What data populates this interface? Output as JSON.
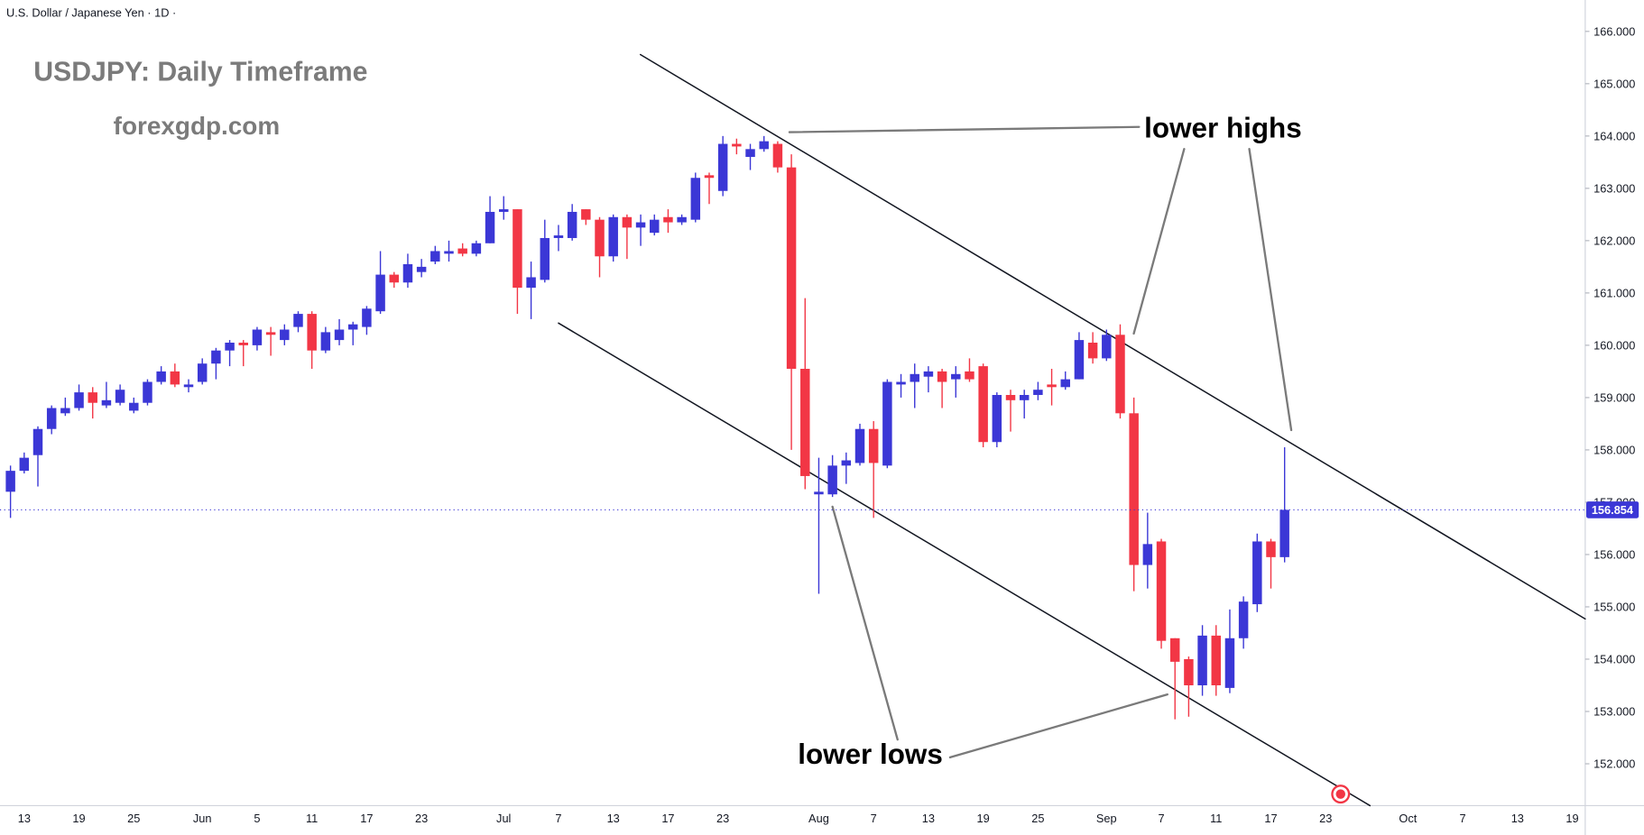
{
  "chart_data": {
    "type": "candlestick",
    "header": "U.S. Dollar / Japanese Yen · 1D ·",
    "title": "USDJPY: Daily Timeframe",
    "subtitle": "forexgdp.com",
    "annotations": [
      "lower highs",
      "lower lows"
    ],
    "up_color": "#3b37d6",
    "down_color": "#f23645",
    "ylim": [
      151.2,
      166.6
    ],
    "yticks": [
      {
        "value": 152,
        "label": "152.000"
      },
      {
        "value": 153,
        "label": "153.000"
      },
      {
        "value": 154,
        "label": "154.000"
      },
      {
        "value": 155,
        "label": "155.000"
      },
      {
        "value": 156,
        "label": "156.000"
      },
      {
        "value": 157,
        "label": "157.000"
      },
      {
        "value": 158,
        "label": "158.000"
      },
      {
        "value": 159,
        "label": "159.000"
      },
      {
        "value": 160,
        "label": "160.000"
      },
      {
        "value": 161,
        "label": "161.000"
      },
      {
        "value": 162,
        "label": "162.000"
      },
      {
        "value": 163,
        "label": "163.000"
      },
      {
        "value": 164,
        "label": "164.000"
      },
      {
        "value": 165,
        "label": "165.000"
      },
      {
        "value": 166,
        "label": "166.000"
      }
    ],
    "categories": [
      null,
      "13",
      null,
      null,
      null,
      "19",
      null,
      null,
      null,
      "25",
      null,
      null,
      null,
      null,
      "Jun",
      null,
      null,
      null,
      "5",
      null,
      null,
      null,
      "11",
      null,
      null,
      null,
      "17",
      null,
      null,
      null,
      "23",
      null,
      null,
      null,
      null,
      null,
      "Jul",
      null,
      null,
      null,
      "7",
      null,
      null,
      null,
      "13",
      null,
      null,
      null,
      "17",
      null,
      null,
      null,
      "23",
      null,
      null,
      null,
      null,
      null,
      null,
      "Aug",
      null,
      null,
      null,
      "7",
      null,
      null,
      null,
      "13",
      null,
      null,
      null,
      "19",
      null,
      null,
      null,
      "25",
      null,
      null,
      null,
      null,
      "Sep",
      null,
      null,
      null,
      "7",
      null,
      null,
      null,
      "11",
      null,
      null,
      null,
      "17",
      null,
      null,
      null,
      "23",
      null,
      null,
      null,
      null,
      null,
      "Oct",
      null,
      null,
      null,
      "7",
      null,
      null,
      null,
      "13",
      null,
      null,
      null,
      "19",
      null
    ],
    "open": [
      157.2,
      157.6,
      157.9,
      158.4,
      158.7,
      158.8,
      159.1,
      158.85,
      158.9,
      158.75,
      158.9,
      159.3,
      159.5,
      159.2,
      159.3,
      159.65,
      159.9,
      160.05,
      160.0,
      160.25,
      160.1,
      160.35,
      160.6,
      159.9,
      160.1,
      160.3,
      160.35,
      160.65,
      161.35,
      161.2,
      161.4,
      161.6,
      161.75,
      161.85,
      161.75,
      161.95,
      162.55,
      162.6,
      161.1,
      161.25,
      162.05,
      162.05,
      162.6,
      162.4,
      161.7,
      162.45,
      162.25,
      162.15,
      162.45,
      162.35,
      162.4,
      163.25,
      162.95,
      163.85,
      163.6,
      163.75,
      163.85,
      163.4,
      159.55,
      157.15,
      157.15,
      157.7,
      157.75,
      158.4,
      157.7,
      159.25,
      159.3,
      159.4,
      159.5,
      159.35,
      159.5,
      159.6,
      158.15,
      159.05,
      158.95,
      159.05,
      159.25,
      159.2,
      159.35,
      160.05,
      159.75,
      160.2,
      158.7,
      155.8,
      156.25,
      154.4,
      154.0,
      153.5,
      154.45,
      153.45,
      154.4,
      155.05,
      156.25,
      155.95,
      null,
      null,
      null,
      null,
      null,
      null,
      null,
      null,
      null,
      null,
      null,
      null,
      null,
      null,
      null,
      null,
      null,
      null,
      null,
      null,
      null,
      null
    ],
    "high": [
      157.7,
      157.95,
      158.45,
      158.85,
      159.0,
      159.25,
      159.2,
      159.3,
      159.25,
      159.0,
      159.35,
      159.6,
      159.65,
      159.35,
      159.75,
      159.95,
      160.1,
      160.1,
      160.35,
      160.35,
      160.4,
      160.65,
      160.65,
      160.35,
      160.5,
      160.45,
      160.75,
      161.8,
      161.4,
      161.75,
      161.65,
      161.9,
      162.0,
      161.95,
      162.0,
      162.85,
      162.85,
      162.6,
      161.6,
      162.4,
      162.3,
      162.7,
      162.6,
      162.45,
      162.5,
      162.5,
      162.5,
      162.5,
      162.6,
      162.5,
      163.3,
      163.3,
      164.0,
      163.95,
      163.85,
      164.0,
      163.9,
      163.65,
      160.9,
      157.85,
      157.9,
      157.95,
      158.5,
      158.55,
      159.35,
      159.45,
      159.65,
      159.6,
      159.55,
      159.6,
      159.75,
      159.65,
      159.1,
      159.15,
      159.15,
      159.3,
      159.55,
      159.5,
      160.25,
      160.25,
      160.3,
      160.4,
      159.0,
      156.8,
      156.3,
      154.4,
      154.05,
      154.65,
      154.65,
      154.95,
      155.2,
      156.4,
      156.3,
      158.05,
      null,
      null,
      null,
      null,
      null,
      null,
      null,
      null,
      null,
      null,
      null,
      null,
      null,
      null,
      null,
      null,
      null,
      null,
      null,
      null,
      null,
      null
    ],
    "low": [
      156.7,
      157.55,
      157.3,
      158.3,
      158.65,
      158.75,
      158.6,
      158.8,
      158.85,
      158.7,
      158.85,
      159.25,
      159.2,
      159.1,
      159.25,
      159.35,
      159.6,
      159.6,
      159.9,
      159.8,
      160.0,
      160.25,
      159.55,
      159.85,
      160.0,
      160.0,
      160.2,
      160.6,
      161.1,
      161.1,
      161.3,
      161.55,
      161.6,
      161.7,
      161.7,
      161.95,
      162.4,
      160.6,
      160.5,
      161.2,
      161.8,
      162.0,
      162.3,
      161.3,
      161.6,
      161.65,
      161.9,
      162.1,
      162.15,
      162.3,
      162.35,
      162.7,
      162.85,
      163.65,
      163.35,
      163.7,
      163.3,
      158.0,
      157.25,
      155.25,
      157.1,
      157.35,
      157.7,
      156.7,
      157.65,
      159.0,
      158.8,
      159.1,
      158.8,
      159.0,
      159.3,
      158.05,
      158.05,
      158.35,
      158.6,
      158.95,
      158.85,
      159.15,
      159.35,
      159.65,
      159.7,
      158.6,
      155.3,
      155.35,
      154.2,
      152.85,
      152.9,
      153.3,
      153.3,
      153.35,
      154.2,
      154.9,
      155.35,
      155.85,
      null,
      null,
      null,
      null,
      null,
      null,
      null,
      null,
      null,
      null,
      null,
      null,
      null,
      null,
      null,
      null,
      null,
      null,
      null,
      null,
      null,
      null
    ],
    "close": [
      157.6,
      157.85,
      158.4,
      158.8,
      158.8,
      159.1,
      158.9,
      158.95,
      159.15,
      158.9,
      159.3,
      159.5,
      159.25,
      159.25,
      159.65,
      159.9,
      160.05,
      160.0,
      160.3,
      160.2,
      160.3,
      160.6,
      159.9,
      160.25,
      160.3,
      160.4,
      160.7,
      161.35,
      161.2,
      161.55,
      161.5,
      161.8,
      161.8,
      161.75,
      161.95,
      162.55,
      162.6,
      161.1,
      161.3,
      162.05,
      162.1,
      162.55,
      162.4,
      161.7,
      162.45,
      162.25,
      162.35,
      162.4,
      162.35,
      162.45,
      163.2,
      163.2,
      163.85,
      163.8,
      163.75,
      163.9,
      163.4,
      159.55,
      157.5,
      157.2,
      157.7,
      157.8,
      158.4,
      157.75,
      159.3,
      159.3,
      159.45,
      159.5,
      159.3,
      159.45,
      159.35,
      158.15,
      159.05,
      158.95,
      159.05,
      159.15,
      159.2,
      159.35,
      160.1,
      159.75,
      160.2,
      158.7,
      155.8,
      156.2,
      154.35,
      153.95,
      153.5,
      154.45,
      153.5,
      154.4,
      155.1,
      156.25,
      155.95,
      156.854,
      null,
      null,
      null,
      null,
      null,
      null,
      null,
      null,
      null,
      null,
      null,
      null,
      null,
      null,
      null,
      null,
      null,
      null,
      null,
      null,
      null,
      null
    ]
  }
}
